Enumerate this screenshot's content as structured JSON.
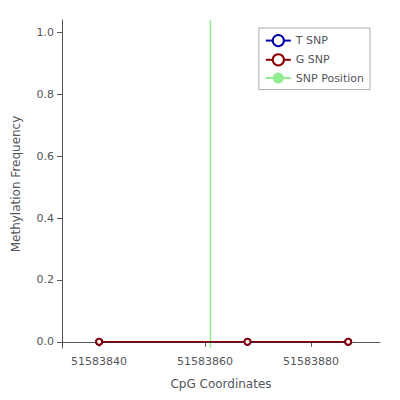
{
  "chart_data": {
    "type": "line",
    "xlabel": "CpG Coordinates",
    "ylabel": "Methylation Frequency",
    "x": [
      51583840,
      51583868,
      51583887
    ],
    "series": [
      {
        "name": "T SNP",
        "color": "#0000aa",
        "values": [
          0.0,
          0.0,
          0.0
        ],
        "marker": "circle"
      },
      {
        "name": "G SNP",
        "color": "#8b0000",
        "values": [
          0.0,
          0.0,
          0.0
        ],
        "marker": "circle"
      },
      {
        "name": "SNP Position",
        "color": "#90ee90",
        "type": "vline",
        "x": 51583861
      }
    ],
    "xlim": [
      51583833,
      51583893
    ],
    "ylim": [
      -0.02,
      1.04
    ],
    "xticks": [
      51583840,
      51583860,
      51583880
    ],
    "yticks": [
      {
        "value": 0,
        "label": "0.0"
      },
      0.2,
      0.4,
      0.6,
      0.8,
      {
        "value": 1,
        "label": "1.0"
      }
    ],
    "legend": "upper right",
    "grid": false
  }
}
